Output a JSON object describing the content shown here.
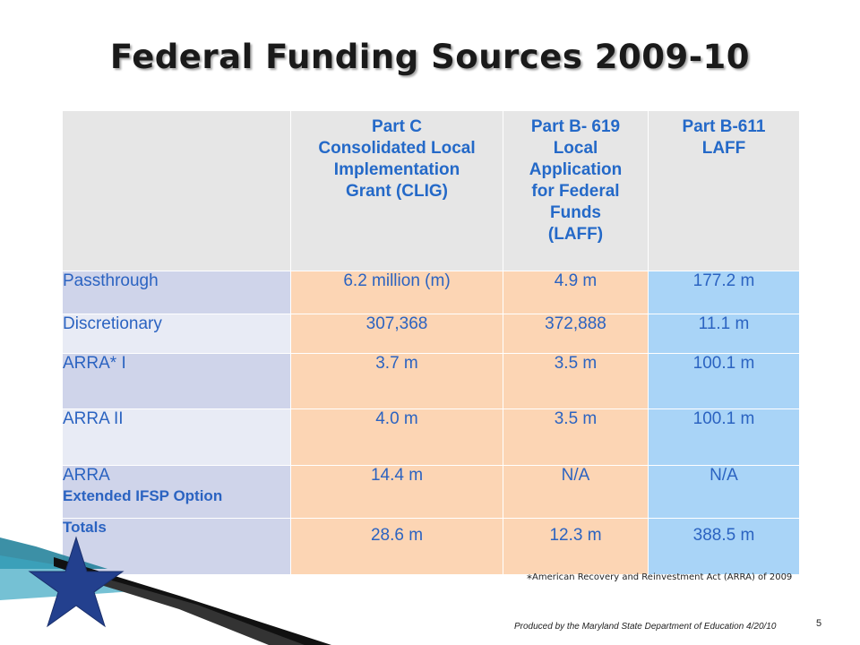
{
  "slide": {
    "title": "Federal Funding Sources 2009-10",
    "page_number": "5"
  },
  "table": {
    "headers": [
      "",
      "Part C Consolidated Local Implementation Grant  (CLIG)",
      "Part B- 619 Local Application for Federal Funds (LAFF)",
      "Part B-611 LAFF"
    ],
    "header_lines": {
      "part_c": [
        "Part C",
        "Consolidated Local",
        "Implementation",
        "Grant  (CLIG)"
      ],
      "part_b619": [
        "Part B- 619",
        "Local",
        "Application",
        "for Federal",
        "Funds",
        "(LAFF)"
      ],
      "part_b611": [
        "Part B-611",
        "LAFF"
      ]
    },
    "rows": [
      {
        "label": "Passthrough",
        "sublabel": "",
        "part_c": "6.2 million (m)",
        "part_b619": "4.9 m",
        "part_b611": "177.2 m"
      },
      {
        "label": "Discretionary",
        "sublabel": "",
        "part_c": "307,368",
        "part_b619": "372,888",
        "part_b611": "11.1 m"
      },
      {
        "label": "ARRA*  I",
        "sublabel": "",
        "part_c": "3.7 m",
        "part_b619": "3.5 m",
        "part_b611": "100.1 m"
      },
      {
        "label": "ARRA   II",
        "sublabel": "",
        "part_c": "4.0 m",
        "part_b619": "3.5 m",
        "part_b611": "100.1 m"
      },
      {
        "label": "ARRA",
        "sublabel": "Extended  IFSP Option",
        "part_c": "14.4 m",
        "part_b619": "N/A",
        "part_b611": "N/A"
      },
      {
        "label": "Totals",
        "sublabel": "",
        "part_c": "28.6 m",
        "part_b619": "12.3 m",
        "part_b611": "388.5 m"
      }
    ]
  },
  "footnote": {
    "marker": "*",
    "text": "American Recovery and Reinvestment Act (ARRA) of 2009"
  },
  "produced_by": "Produced by the Maryland State Department of Education 4/20/10",
  "colors": {
    "header_bg": "#e6e6e6",
    "label_bg": "#cfd4ea",
    "part_c_bg": "#fcd5b4",
    "part_b611_bg": "#a9d4f7",
    "text_blue": "#2b63c1",
    "star_blue": "#23408e"
  },
  "decor": {
    "icon": "star-icon"
  }
}
